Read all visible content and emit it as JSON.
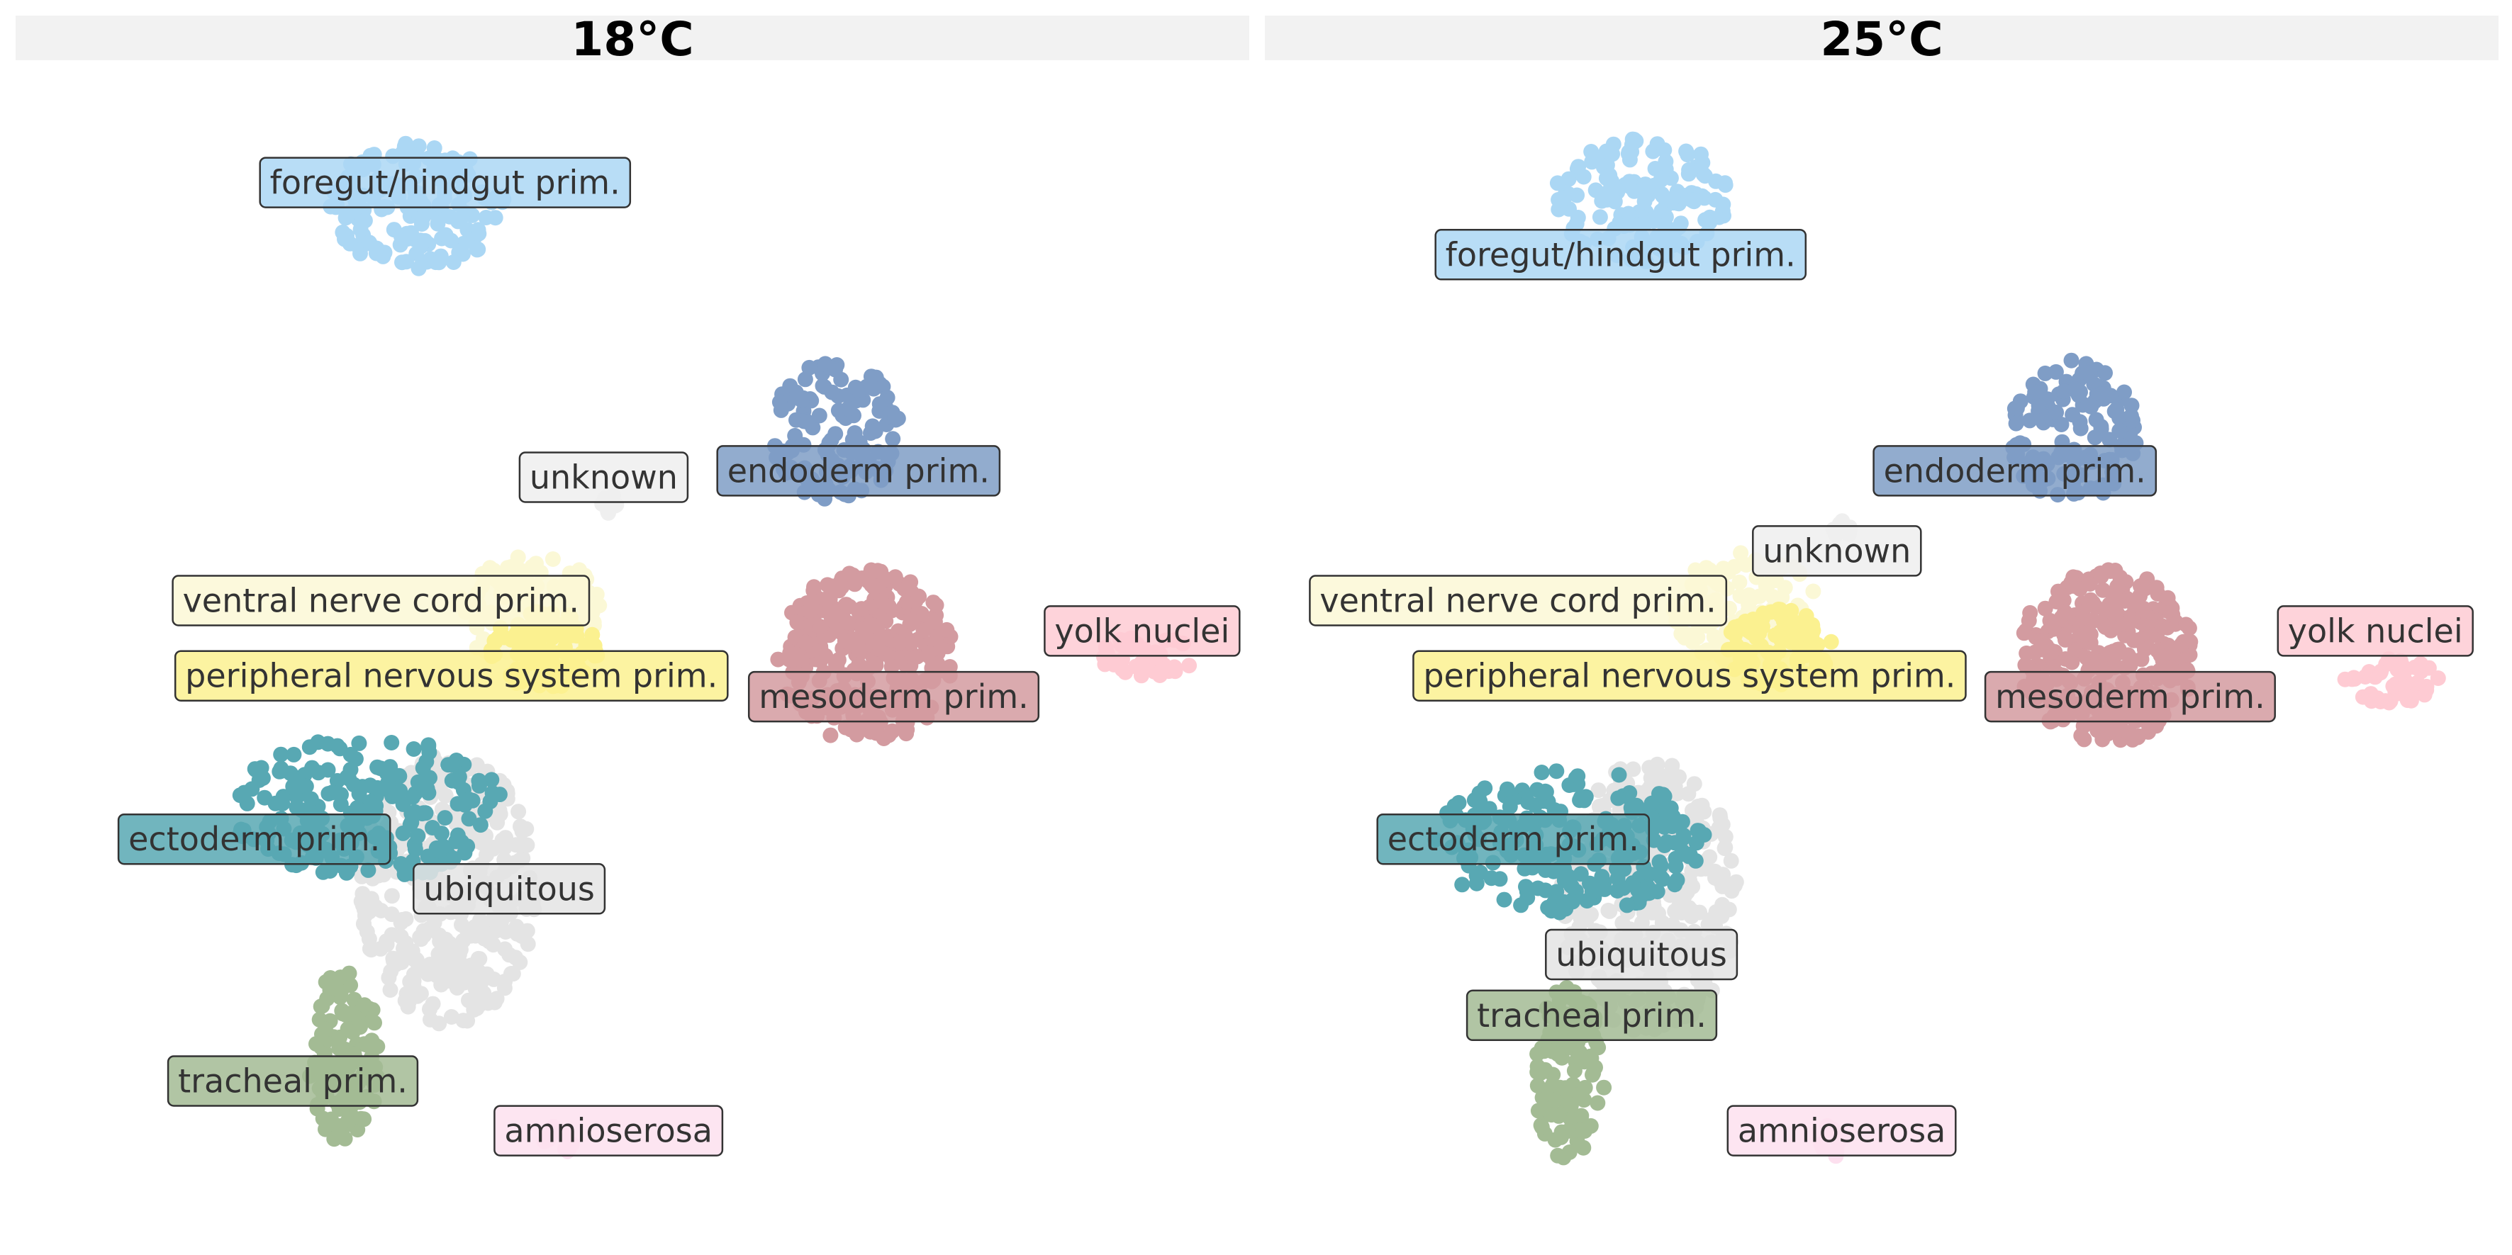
{
  "figure": {
    "panels": [
      "18°C",
      "25°C"
    ]
  },
  "chart_data": {
    "type": "scatter",
    "facets": [
      "18°C",
      "25°C"
    ],
    "grid": false,
    "axes_visible": false,
    "xlim": [
      0,
      760
    ],
    "ylim": [
      0,
      740
    ],
    "groups": [
      {
        "name": "foregut/hindgut prim.",
        "color": "#abd7f4",
        "text_color": "#3b4a55"
      },
      {
        "name": "endoderm prim.",
        "color": "#7f9dc6",
        "text_color": "#2e3a4a"
      },
      {
        "name": "unknown",
        "color": "#efefef",
        "text_color": "#444444"
      },
      {
        "name": "ventral nerve cord prim.",
        "color": "#fbf8d6",
        "text_color": "#444444"
      },
      {
        "name": "peripheral nervous system prim.",
        "color": "#fbf190",
        "text_color": "#444444"
      },
      {
        "name": "mesoderm prim.",
        "color": "#d39ba0",
        "text_color": "#3a2c2e"
      },
      {
        "name": "yolk nuclei",
        "color": "#fecbd3",
        "text_color": "#3d3b3c"
      },
      {
        "name": "ectoderm prim.",
        "color": "#58a8b3",
        "text_color": "#223a3d"
      },
      {
        "name": "ubiquitous",
        "color": "#e4e4e4",
        "text_color": "#444444"
      },
      {
        "name": "tracheal prim.",
        "color": "#a3bb94",
        "text_color": "#2a3324"
      },
      {
        "name": "amnioserosa",
        "color": "#fde0ef",
        "text_color": "#3d3b3c"
      }
    ],
    "panel_18C": {
      "title": "18°C",
      "clusters": [
        {
          "group": "foregut/hindgut prim.",
          "x": 250,
          "y": 128,
          "label_x": 268,
          "label_y": 114
        },
        {
          "group": "endoderm prim.",
          "x": 512,
          "y": 270,
          "label_x": 526,
          "label_y": 294
        },
        {
          "group": "unknown",
          "x": 372,
          "y": 315,
          "label_x": 367,
          "label_y": 298
        },
        {
          "group": "ventral nerve cord prim.",
          "x": 320,
          "y": 380,
          "label_x": 228,
          "label_y": 375
        },
        {
          "group": "peripheral nervous system prim.",
          "x": 330,
          "y": 405,
          "label_x": 272,
          "label_y": 422
        },
        {
          "group": "mesoderm prim.",
          "x": 530,
          "y": 410,
          "label_x": 548,
          "label_y": 435
        },
        {
          "group": "yolk nuclei",
          "x": 705,
          "y": 410,
          "label_x": 703,
          "label_y": 394
        },
        {
          "group": "ectoderm prim.",
          "x": 220,
          "y": 505,
          "label_x": 149,
          "label_y": 524
        },
        {
          "group": "ubiquitous",
          "x": 270,
          "y": 555,
          "label_x": 308,
          "label_y": 555
        },
        {
          "group": "tracheal prim.",
          "x": 205,
          "y": 660,
          "label_x": 173,
          "label_y": 675
        },
        {
          "group": "amnioserosa",
          "x": 340,
          "y": 712,
          "label_x": 370,
          "label_y": 706
        }
      ]
    },
    "panel_25C": {
      "title": "25°C",
      "clusters": [
        {
          "group": "foregut/hindgut prim.",
          "x": 235,
          "y": 125,
          "label_x": 222,
          "label_y": 159
        },
        {
          "group": "endoderm prim.",
          "x": 505,
          "y": 270,
          "label_x": 468,
          "label_y": 294
        },
        {
          "group": "unknown",
          "x": 360,
          "y": 330,
          "label_x": 357,
          "label_y": 344
        },
        {
          "group": "ventral nerve cord prim.",
          "x": 300,
          "y": 380,
          "label_x": 158,
          "label_y": 375
        },
        {
          "group": "peripheral nervous system prim.",
          "x": 320,
          "y": 405,
          "label_x": 265,
          "label_y": 422
        },
        {
          "group": "mesoderm prim.",
          "x": 525,
          "y": 410,
          "label_x": 540,
          "label_y": 435
        },
        {
          "group": "yolk nuclei",
          "x": 703,
          "y": 425,
          "label_x": 693,
          "label_y": 394
        },
        {
          "group": "ectoderm prim.",
          "x": 190,
          "y": 525,
          "label_x": 155,
          "label_y": 524
        },
        {
          "group": "ubiquitous",
          "x": 240,
          "y": 560,
          "label_x": 235,
          "label_y": 596
        },
        {
          "group": "tracheal prim.",
          "x": 190,
          "y": 670,
          "label_x": 204,
          "label_y": 634
        },
        {
          "group": "amnioserosa",
          "x": 355,
          "y": 712,
          "label_x": 360,
          "label_y": 706
        }
      ]
    }
  }
}
